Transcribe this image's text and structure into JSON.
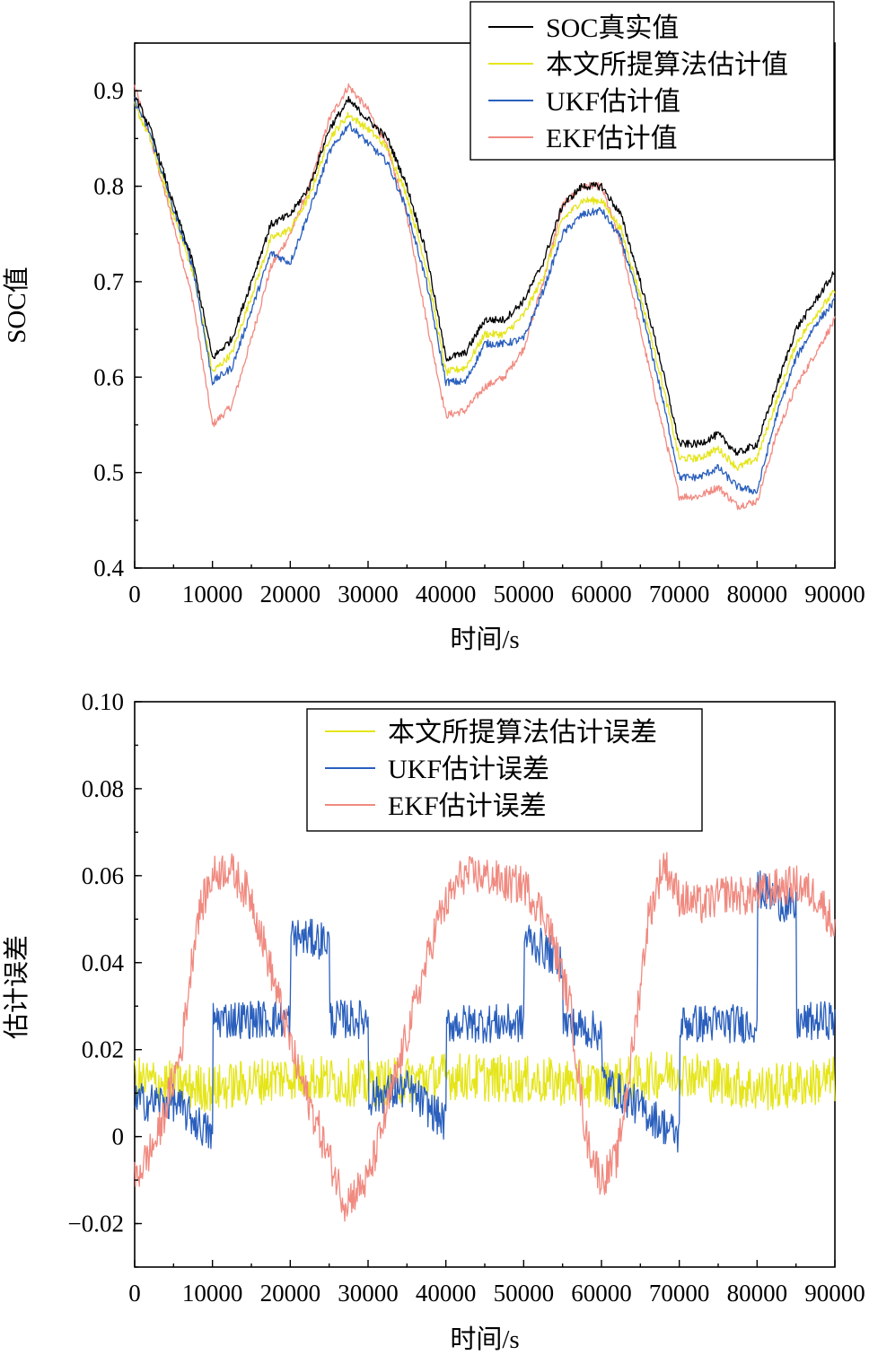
{
  "chart_data": [
    {
      "type": "line",
      "xlabel": "时间/s",
      "ylabel": "SOC值",
      "xlim": [
        0,
        90000
      ],
      "ylim": [
        0.4,
        0.95
      ],
      "xticks": [
        0,
        10000,
        20000,
        30000,
        40000,
        50000,
        60000,
        70000,
        80000,
        90000
      ],
      "xtick_labels": [
        "0",
        "10000",
        "20000",
        "30000",
        "40000",
        "50000",
        "60000",
        "70000",
        "80000",
        "90000"
      ],
      "yticks": [
        0.4,
        0.5,
        0.6,
        0.7,
        0.8,
        0.9
      ],
      "ytick_labels": [
        "0.4",
        "0.5",
        "0.6",
        "0.7",
        "0.8",
        "0.9"
      ],
      "legend_position": "top-right",
      "grid": false,
      "x": [
        0,
        2000,
        5000,
        7500,
        10000,
        12500,
        15000,
        17500,
        20000,
        22500,
        25000,
        27500,
        30000,
        32500,
        35000,
        37500,
        40000,
        42500,
        45000,
        47500,
        50000,
        52500,
        55000,
        57500,
        60000,
        62500,
        65000,
        67500,
        70000,
        72500,
        75000,
        77500,
        80000,
        82500,
        85000,
        87500,
        90000
      ],
      "series": [
        {
          "name": "SOC真实值",
          "color": "#000000",
          "values": [
            0.895,
            0.86,
            0.78,
            0.72,
            0.62,
            0.64,
            0.7,
            0.76,
            0.77,
            0.8,
            0.86,
            0.89,
            0.87,
            0.85,
            0.8,
            0.73,
            0.62,
            0.625,
            0.66,
            0.66,
            0.68,
            0.72,
            0.78,
            0.8,
            0.8,
            0.77,
            0.7,
            0.62,
            0.53,
            0.53,
            0.54,
            0.52,
            0.53,
            0.59,
            0.65,
            0.68,
            0.71
          ]
        },
        {
          "name": "本文所提算法估计值",
          "color": "#e5e51a",
          "values": [
            0.885,
            0.85,
            0.77,
            0.71,
            0.605,
            0.625,
            0.685,
            0.745,
            0.755,
            0.79,
            0.85,
            0.875,
            0.86,
            0.84,
            0.79,
            0.715,
            0.605,
            0.61,
            0.645,
            0.645,
            0.665,
            0.705,
            0.765,
            0.785,
            0.785,
            0.755,
            0.685,
            0.605,
            0.515,
            0.515,
            0.525,
            0.505,
            0.515,
            0.575,
            0.635,
            0.665,
            0.69
          ]
        },
        {
          "name": "UKF估计值",
          "color": "#2a5fbd",
          "values": [
            0.89,
            0.855,
            0.775,
            0.715,
            0.595,
            0.61,
            0.67,
            0.73,
            0.72,
            0.775,
            0.835,
            0.865,
            0.845,
            0.825,
            0.775,
            0.7,
            0.595,
            0.595,
            0.635,
            0.635,
            0.64,
            0.69,
            0.75,
            0.77,
            0.775,
            0.745,
            0.675,
            0.59,
            0.495,
            0.495,
            0.505,
            0.485,
            0.48,
            0.56,
            0.62,
            0.655,
            0.68
          ]
        },
        {
          "name": "EKF估计值",
          "color": "#f08a80",
          "values": [
            0.905,
            0.85,
            0.76,
            0.68,
            0.55,
            0.57,
            0.64,
            0.715,
            0.75,
            0.8,
            0.87,
            0.905,
            0.88,
            0.84,
            0.77,
            0.66,
            0.56,
            0.565,
            0.59,
            0.6,
            0.63,
            0.7,
            0.78,
            0.8,
            0.8,
            0.74,
            0.65,
            0.56,
            0.475,
            0.475,
            0.485,
            0.465,
            0.47,
            0.54,
            0.59,
            0.625,
            0.66
          ]
        }
      ]
    },
    {
      "type": "line",
      "xlabel": "时间/s",
      "ylabel": "估计误差",
      "xlim": [
        0,
        90000
      ],
      "ylim": [
        -0.03,
        0.1
      ],
      "xticks": [
        0,
        10000,
        20000,
        30000,
        40000,
        50000,
        60000,
        70000,
        80000,
        90000
      ],
      "xtick_labels": [
        "0",
        "10000",
        "20000",
        "30000",
        "40000",
        "50000",
        "60000",
        "70000",
        "80000",
        "90000"
      ],
      "yticks": [
        -0.02,
        0,
        0.02,
        0.04,
        0.06,
        0.08,
        0.1
      ],
      "ytick_labels": [
        "−0.02",
        "0",
        "0.02",
        "0.04",
        "0.06",
        "0.08",
        "0.10"
      ],
      "legend_position": "top-center",
      "grid": false,
      "series": [
        {
          "name": "本文所提算法估计误差",
          "color": "#e5e51a",
          "x": [
            0,
            10000,
            20000,
            30000,
            40000,
            50000,
            60000,
            70000,
            80000,
            90000
          ],
          "values": [
            0.013,
            0.011,
            0.014,
            0.012,
            0.014,
            0.013,
            0.012,
            0.015,
            0.011,
            0.013
          ]
        },
        {
          "name": "UKF估计误差",
          "color": "#2a5fbd",
          "x": [
            0,
            5000,
            10000,
            10100,
            20000,
            20100,
            25000,
            25100,
            30000,
            30100,
            35000,
            40000,
            40100,
            50000,
            50100,
            55000,
            55100,
            60000,
            60100,
            70000,
            70100,
            80000,
            80100,
            85000,
            85100,
            90000
          ],
          "values": [
            0.008,
            0.008,
            0.0,
            0.027,
            0.027,
            0.046,
            0.045,
            0.027,
            0.027,
            0.009,
            0.011,
            0.003,
            0.026,
            0.026,
            0.046,
            0.04,
            0.026,
            0.024,
            0.013,
            0.0,
            0.026,
            0.026,
            0.057,
            0.052,
            0.026,
            0.027
          ]
        },
        {
          "name": "EKF估计误差",
          "color": "#f08a80",
          "x": [
            0,
            3000,
            6000,
            8000,
            10000,
            12000,
            15000,
            18000,
            21000,
            24000,
            27000,
            30000,
            33000,
            36000,
            39000,
            42000,
            45000,
            48000,
            50000,
            53000,
            56000,
            58000,
            60000,
            62000,
            64000,
            66000,
            68000,
            70000,
            73000,
            76000,
            79000,
            82000,
            85000,
            88000,
            90000
          ],
          "values": [
            -0.01,
            0.0,
            0.02,
            0.05,
            0.06,
            0.062,
            0.055,
            0.035,
            0.015,
            0.0,
            -0.015,
            -0.01,
            0.01,
            0.03,
            0.05,
            0.06,
            0.06,
            0.058,
            0.058,
            0.05,
            0.03,
            0.0,
            -0.01,
            -0.005,
            0.02,
            0.05,
            0.063,
            0.055,
            0.053,
            0.056,
            0.055,
            0.057,
            0.058,
            0.055,
            0.048
          ]
        }
      ]
    }
  ]
}
